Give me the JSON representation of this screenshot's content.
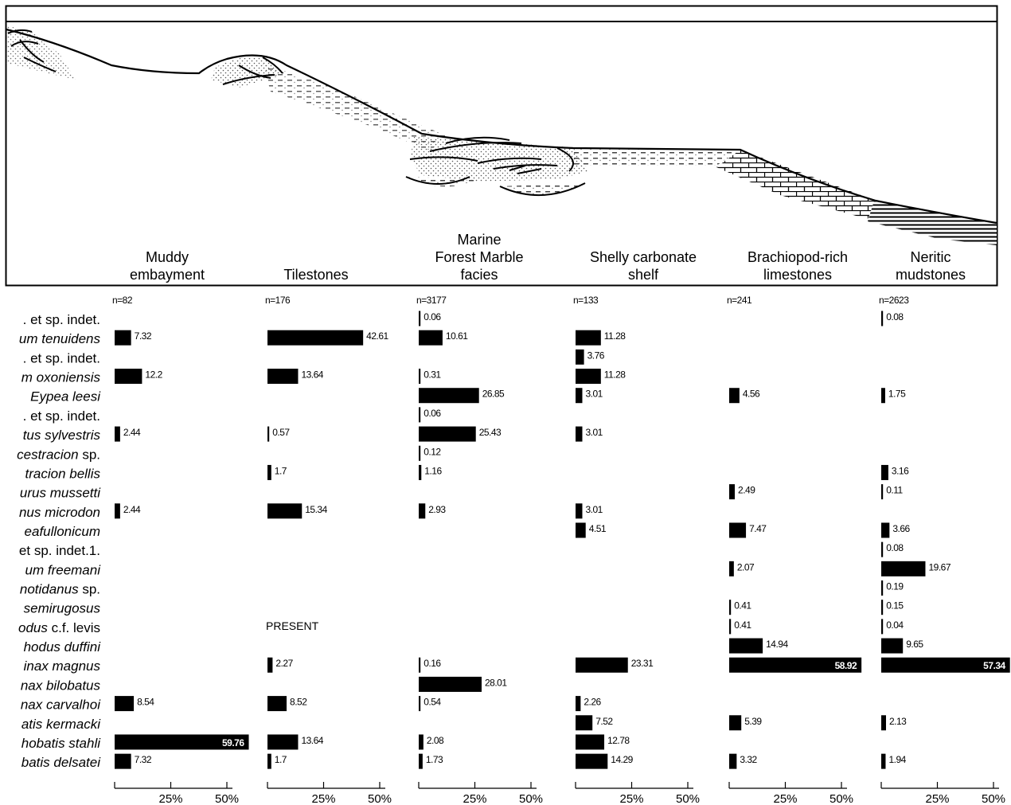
{
  "chart_data": {
    "type": "bar",
    "orientation": "horizontal",
    "value_unit": "%",
    "taxa": [
      {
        "pre": ". et sp. indet.",
        "it": "",
        "post": ""
      },
      {
        "pre": "",
        "it": "um tenuidens",
        "post": ""
      },
      {
        "pre": ". et sp. indet.",
        "it": "",
        "post": ""
      },
      {
        "pre": "",
        "it": "m oxoniensis",
        "post": ""
      },
      {
        "pre": "",
        "it": "Eypea leesi",
        "post": ""
      },
      {
        "pre": ". et sp. indet.",
        "it": "",
        "post": ""
      },
      {
        "pre": "",
        "it": "tus sylvestris",
        "post": ""
      },
      {
        "pre": "",
        "it": "cestracion",
        "post": " sp."
      },
      {
        "pre": "",
        "it": "tracion bellis",
        "post": ""
      },
      {
        "pre": "",
        "it": "urus mussetti",
        "post": ""
      },
      {
        "pre": "",
        "it": "nus microdon",
        "post": ""
      },
      {
        "pre": "",
        "it": "eafullonicum",
        "post": ""
      },
      {
        "pre": "et sp. indet.1.",
        "it": "",
        "post": ""
      },
      {
        "pre": "",
        "it": "um freemani",
        "post": ""
      },
      {
        "pre": "",
        "it": "notidanus",
        "post": " sp."
      },
      {
        "pre": "",
        "it": "semirugosus",
        "post": ""
      },
      {
        "pre": "",
        "it": "odus",
        "post": " c.f. levis"
      },
      {
        "pre": "",
        "it": "hodus duffini",
        "post": ""
      },
      {
        "pre": "",
        "it": "inax magnus",
        "post": ""
      },
      {
        "pre": "",
        "it": "nax bilobatus",
        "post": ""
      },
      {
        "pre": "",
        "it": "nax carvalhoi",
        "post": ""
      },
      {
        "pre": "",
        "it": "atis kermacki",
        "post": ""
      },
      {
        "pre": "",
        "it": "hobatis stahli",
        "post": ""
      },
      {
        "pre": "",
        "it": "batis delsatei",
        "post": ""
      }
    ],
    "axis_ticks": [
      {
        "value": 25,
        "label": "25%"
      },
      {
        "value": 50,
        "label": "50%"
      }
    ],
    "series": [
      {
        "name_lines": [
          "Muddy",
          "embayment"
        ],
        "n_label": "n=82",
        "values": [
          null,
          7.32,
          null,
          12.2,
          null,
          null,
          2.44,
          null,
          null,
          null,
          2.44,
          null,
          null,
          null,
          null,
          null,
          null,
          null,
          null,
          null,
          8.54,
          null,
          59.76,
          7.32
        ],
        "labels": [
          null,
          "7.32",
          null,
          "12.2",
          null,
          null,
          "2.44",
          null,
          null,
          null,
          "2.44",
          null,
          null,
          null,
          null,
          null,
          null,
          null,
          null,
          null,
          "8.54",
          null,
          "59.76",
          "7.32"
        ]
      },
      {
        "name_lines": [
          "Tilestones"
        ],
        "n_label": "n=176",
        "values": [
          null,
          42.61,
          null,
          13.64,
          null,
          null,
          0.57,
          null,
          1.7,
          null,
          15.34,
          null,
          null,
          null,
          null,
          null,
          null,
          null,
          2.27,
          null,
          8.52,
          null,
          13.64,
          1.7
        ],
        "labels": [
          null,
          "42.61",
          null,
          "13.64",
          null,
          null,
          "0.57",
          null,
          "1.7",
          null,
          "15.34",
          null,
          null,
          null,
          null,
          null,
          "PRESENT",
          null,
          "2.27",
          null,
          "8.52",
          null,
          "13.64",
          "1.7"
        ]
      },
      {
        "name_lines": [
          "Marine",
          "Forest Marble",
          "facies"
        ],
        "n_label": "n=3177",
        "values": [
          0.06,
          10.61,
          null,
          0.31,
          26.85,
          0.06,
          25.43,
          0.12,
          1.16,
          null,
          2.93,
          null,
          null,
          null,
          null,
          null,
          null,
          null,
          0.16,
          28.01,
          0.54,
          null,
          2.08,
          1.73
        ],
        "labels": [
          "0.06",
          "10.61",
          null,
          "0.31",
          "26.85",
          "0.06",
          "25.43",
          "0.12",
          "1.16",
          null,
          "2.93",
          null,
          null,
          null,
          null,
          null,
          null,
          null,
          "0.16",
          "28.01",
          "0.54",
          null,
          "2.08",
          "1.73"
        ]
      },
      {
        "name_lines": [
          "Shelly carbonate",
          "shelf"
        ],
        "n_label": "n=133",
        "values": [
          null,
          11.28,
          3.76,
          11.28,
          3.01,
          null,
          3.01,
          null,
          null,
          null,
          3.01,
          4.51,
          null,
          null,
          null,
          null,
          null,
          null,
          23.31,
          null,
          2.26,
          7.52,
          12.78,
          14.29
        ],
        "labels": [
          null,
          "11.28",
          "3.76",
          "11.28",
          "3.01",
          null,
          "3.01",
          null,
          null,
          null,
          "3.01",
          "4.51",
          null,
          null,
          null,
          null,
          null,
          null,
          "23.31",
          null,
          "2.26",
          "7.52",
          "12.78",
          "14.29"
        ]
      },
      {
        "name_lines": [
          "Brachiopod-rich",
          "limestones"
        ],
        "n_label": "n=241",
        "values": [
          null,
          null,
          null,
          null,
          4.56,
          null,
          null,
          null,
          null,
          2.49,
          null,
          7.47,
          null,
          2.07,
          null,
          0.41,
          0.41,
          14.94,
          58.92,
          null,
          null,
          5.39,
          null,
          3.32
        ],
        "labels": [
          null,
          null,
          null,
          null,
          "4.56",
          null,
          null,
          null,
          null,
          "2.49",
          null,
          "7.47",
          null,
          "2.07",
          null,
          "0.41",
          "0.41",
          "14.94",
          "58.92",
          null,
          null,
          "5.39",
          null,
          "3.32"
        ]
      },
      {
        "name_lines": [
          "Neritic",
          "mudstones"
        ],
        "n_label": "n=2623",
        "values": [
          0.08,
          null,
          null,
          null,
          1.75,
          null,
          null,
          null,
          3.16,
          0.11,
          null,
          3.66,
          0.08,
          19.67,
          0.19,
          0.15,
          0.04,
          9.65,
          57.34,
          null,
          null,
          2.13,
          null,
          1.94
        ],
        "labels": [
          "0.08",
          null,
          null,
          null,
          "1.75",
          null,
          null,
          null,
          "3.16",
          "0.11",
          null,
          "3.66",
          "0.08",
          "19.67",
          "0.19",
          "0.15",
          "0.04",
          "9.65",
          "57.34",
          null,
          null,
          "2.13",
          null,
          "1.94"
        ]
      }
    ]
  },
  "colors": {
    "bar": "#000000",
    "sediment_fill": "#cfcfcf"
  }
}
